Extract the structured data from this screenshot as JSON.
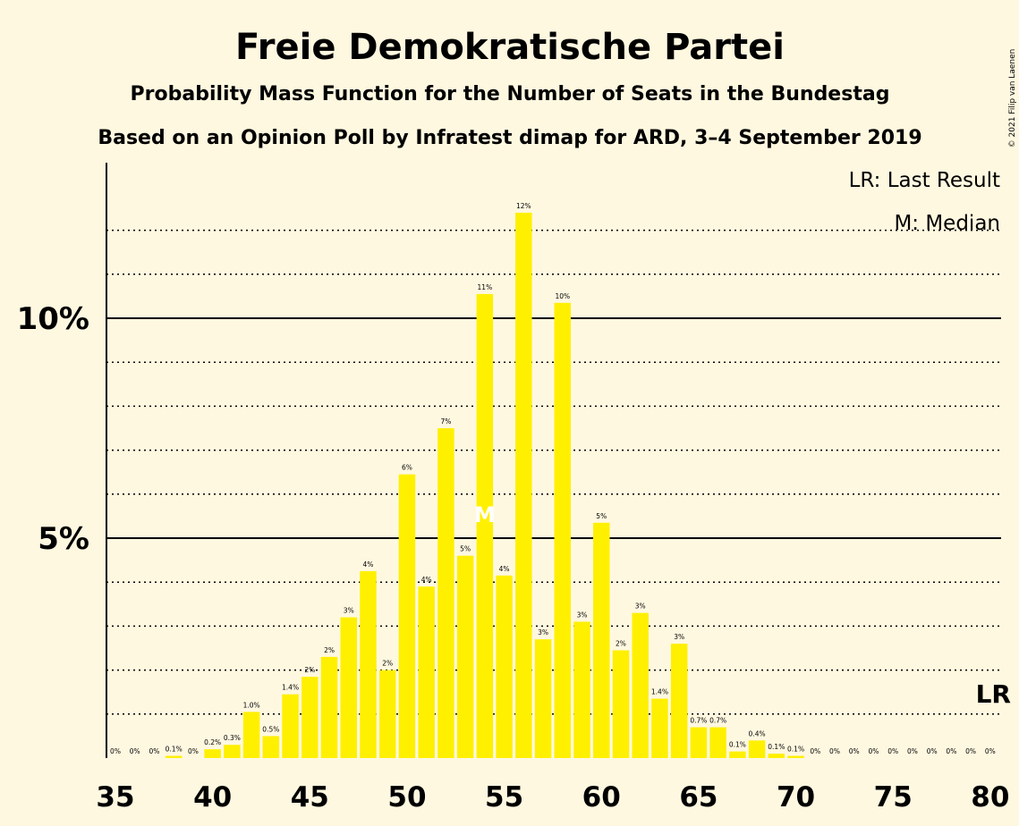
{
  "copyright": "© 2021 Filip van Laenen",
  "chart_data": {
    "type": "bar",
    "title": "Freie Demokratische Partei",
    "subtitle": "Probability Mass Function for the Number of Seats in the Bundestag",
    "subtitle2": "Based on an Opinion Poll by Infratest dimap for ARD, 3–4 September 2019",
    "legend": [
      "LR: Last Result",
      "M: Median"
    ],
    "x": [
      35,
      36,
      37,
      38,
      39,
      40,
      41,
      42,
      43,
      44,
      45,
      46,
      47,
      48,
      49,
      50,
      51,
      52,
      53,
      54,
      55,
      56,
      57,
      58,
      59,
      60,
      61,
      62,
      63,
      64,
      65,
      66,
      67,
      68,
      69,
      70,
      71,
      72,
      73,
      74,
      75,
      76,
      77,
      78,
      79,
      80
    ],
    "values": [
      0,
      0,
      0,
      0.05,
      0,
      0.2,
      0.3,
      1.05,
      0.5,
      1.45,
      1.85,
      2.3,
      3.2,
      4.25,
      2.0,
      6.45,
      3.9,
      7.5,
      4.6,
      10.55,
      4.15,
      12.4,
      2.7,
      10.35,
      3.1,
      5.35,
      2.45,
      3.3,
      1.35,
      2.6,
      0.7,
      0.7,
      0.15,
      0.4,
      0.1,
      0.05,
      0,
      0,
      0,
      0,
      0,
      0,
      0,
      0,
      0,
      0
    ],
    "labels": [
      "0%",
      "0%",
      "0%",
      "0.1%",
      "0%",
      "0.2%",
      "0.3%",
      "1.0%",
      "0.5%",
      "1.4%",
      "2%",
      "2%",
      "3%",
      "4%",
      "2%",
      "6%",
      "4%",
      "7%",
      "5%",
      "11%",
      "4%",
      "12%",
      "3%",
      "10%",
      "3%",
      "5%",
      "2%",
      "3%",
      "1.4%",
      "3%",
      "0.7%",
      "0.7%",
      "0.1%",
      "0.4%",
      "0.1%",
      "0.1%",
      "0%",
      "0%",
      "0%",
      "0%",
      "0%",
      "0%",
      "0%",
      "0%",
      "0%",
      "0%"
    ],
    "x_ticks": [
      35,
      40,
      45,
      50,
      55,
      60,
      65,
      70,
      75,
      80
    ],
    "y_ticks": [
      {
        "value": 5,
        "label": "5%"
      },
      {
        "value": 10,
        "label": "10%"
      }
    ],
    "ylim": [
      0,
      13.5
    ],
    "median": 54,
    "median_marker": "M",
    "last_result": 80,
    "last_result_marker": "LR",
    "bar_color": "#fff000",
    "background": "#fff8e0"
  }
}
